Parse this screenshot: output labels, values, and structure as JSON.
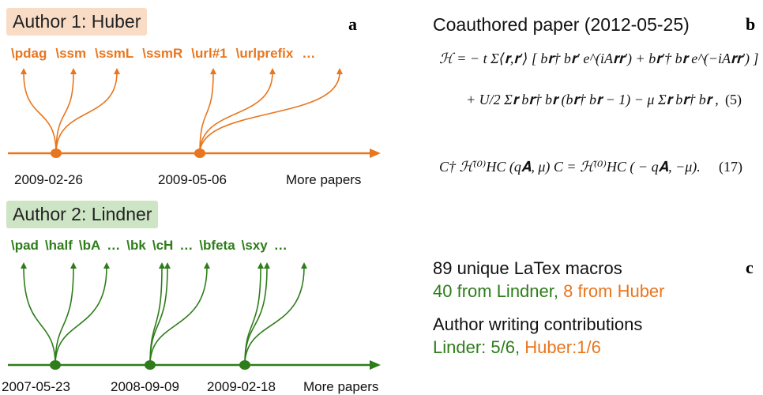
{
  "panel_a": {
    "label": "a",
    "author1": {
      "title": "Author 1: Huber",
      "macros": [
        "\\pdag",
        "\\ssm",
        "\\ssmL",
        "\\ssmR",
        "\\url#1",
        "\\urlprefix",
        "…"
      ],
      "dates": [
        "2009-02-26",
        "2009-05-06"
      ],
      "more": "More papers"
    },
    "author2": {
      "title": "Author 2: Lindner",
      "macros": [
        "\\pad",
        "\\half",
        "\\bA",
        "…",
        "\\bk",
        "\\cH",
        "…",
        "\\bfeta",
        "\\sxy",
        "…"
      ],
      "dates": [
        "2007-05-23",
        "2008-09-09",
        "2009-02-18"
      ],
      "more": "More papers"
    }
  },
  "panel_b": {
    "label": "b",
    "title": "Coauthored paper (2012-05-25)",
    "equations": [
      {
        "lines": [
          "ℋ = − t Σ⟨𝐫,𝐫′⟩ [ b𝐫† b𝐫′ e^(iA𝐫𝐫′) + b𝐫′† b𝐫 e^(−iA𝐫𝐫′) ]",
          "+ U/2 Σ𝐫 b𝐫† b𝐫 (b𝐫† b𝐫 − 1) − μ Σ𝐫 b𝐫† b𝐫 ,"
        ],
        "number": "(5)"
      },
      {
        "lines": [
          "C† ℋ⁽⁰⁾HC (q𝐀, μ) C = ℋ⁽⁰⁾HC ( − q𝐀, −μ)."
        ],
        "number": "(17)"
      }
    ]
  },
  "panel_c": {
    "label": "c",
    "macro_title": "89 unique LaTex macros",
    "macro_lindner": "40 from Lindner,",
    "macro_huber": "8 from Huber",
    "contrib_title": "Author writing contributions",
    "contrib_lindner": "Linder: 5/6,",
    "contrib_huber": "Huber:1/6"
  }
}
